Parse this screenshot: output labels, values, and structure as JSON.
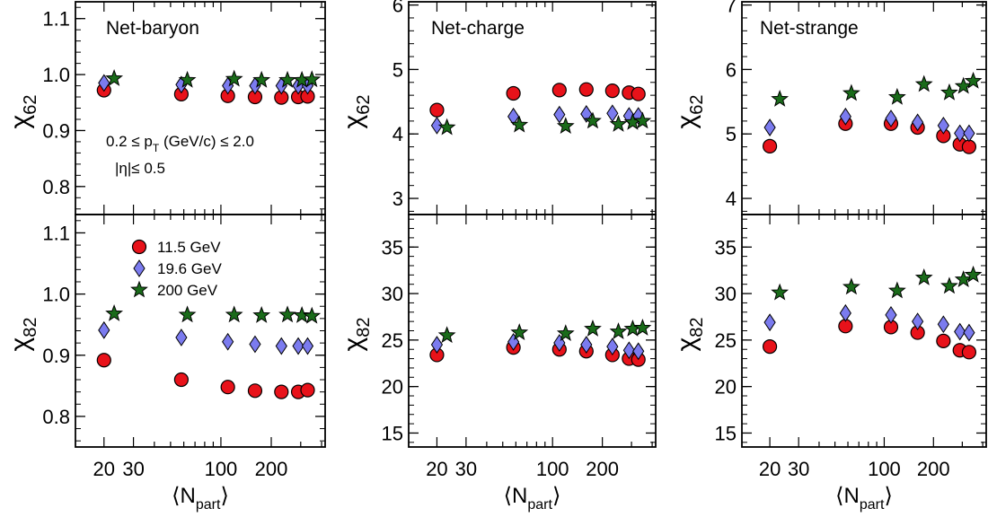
{
  "chart_data": [
    {
      "type": "scatter",
      "title": "Net-baryon",
      "xlabel": "⟨N_part⟩",
      "xscale": "log",
      "x_ticks": [
        "20",
        "30",
        "100",
        "200"
      ],
      "cut_labels": [
        "0.2 ≤ p_T (GeV/c) ≤ 2.0",
        "|η|≤ 0.5"
      ],
      "legend": {
        "placement": "top-left of lower panel",
        "entries": [
          {
            "label": "11.5 GeV",
            "marker": "circle",
            "color": "#e8121a"
          },
          {
            "label": "19.6 GeV",
            "marker": "diamond",
            "color": "#7b7bef"
          },
          {
            "label": "200 GeV",
            "marker": "star",
            "color": "#1a6b1a"
          }
        ]
      },
      "panels": [
        {
          "ylabel": "χ62",
          "ylim": [
            0.75,
            1.13
          ],
          "y_ticks": [
            "0.8",
            "0.9",
            "1.0",
            "1.1"
          ],
          "series": [
            {
              "name": "11.5 GeV",
              "points": [
                [
                  20,
                  0.972
                ],
                [
                  58,
                  0.965
                ],
                [
                  110,
                  0.962
                ],
                [
                  160,
                  0.96
                ],
                [
                  230,
                  0.959
                ],
                [
                  290,
                  0.96
                ],
                [
                  330,
                  0.961
                ]
              ]
            },
            {
              "name": "19.6 GeV",
              "points": [
                [
                  20,
                  0.985
                ],
                [
                  58,
                  0.982
                ],
                [
                  110,
                  0.98
                ],
                [
                  160,
                  0.98
                ],
                [
                  230,
                  0.98
                ],
                [
                  290,
                  0.98
                ],
                [
                  330,
                  0.98
                ]
              ]
            },
            {
              "name": "200 GeV",
              "points": [
                [
                  23,
                  0.993
                ],
                [
                  63,
                  0.99
                ],
                [
                  120,
                  0.992
                ],
                [
                  175,
                  0.99
                ],
                [
                  250,
                  0.99
                ],
                [
                  305,
                  0.99
                ],
                [
                  350,
                  0.991
                ]
              ]
            }
          ]
        },
        {
          "ylabel": "χ82",
          "ylim": [
            0.75,
            1.13
          ],
          "y_ticks": [
            "0.8",
            "0.9",
            "1.0",
            "1.1"
          ],
          "series": [
            {
              "name": "11.5 GeV",
              "points": [
                [
                  20,
                  0.892
                ],
                [
                  58,
                  0.86
                ],
                [
                  110,
                  0.848
                ],
                [
                  160,
                  0.842
                ],
                [
                  230,
                  0.84
                ],
                [
                  290,
                  0.84
                ],
                [
                  330,
                  0.843
                ]
              ]
            },
            {
              "name": "19.6 GeV",
              "points": [
                [
                  20,
                  0.941
                ],
                [
                  58,
                  0.929
                ],
                [
                  110,
                  0.922
                ],
                [
                  160,
                  0.918
                ],
                [
                  230,
                  0.915
                ],
                [
                  290,
                  0.915
                ],
                [
                  330,
                  0.915
                ]
              ]
            },
            {
              "name": "200 GeV",
              "points": [
                [
                  23,
                  0.968
                ],
                [
                  63,
                  0.966
                ],
                [
                  120,
                  0.966
                ],
                [
                  175,
                  0.965
                ],
                [
                  250,
                  0.966
                ],
                [
                  305,
                  0.965
                ],
                [
                  350,
                  0.964
                ]
              ]
            }
          ]
        }
      ]
    },
    {
      "type": "scatter",
      "title": "Net-charge",
      "xlabel": "⟨N_part⟩",
      "xscale": "log",
      "x_ticks": [
        "20",
        "30",
        "100",
        "200"
      ],
      "panels": [
        {
          "ylabel": "χ62",
          "ylim": [
            2.75,
            6.05
          ],
          "y_ticks": [
            "3",
            "4",
            "5",
            "6"
          ],
          "series": [
            {
              "name": "11.5 GeV",
              "points": [
                [
                  20,
                  4.37
                ],
                [
                  58,
                  4.63
                ],
                [
                  110,
                  4.68
                ],
                [
                  160,
                  4.69
                ],
                [
                  230,
                  4.67
                ],
                [
                  290,
                  4.64
                ],
                [
                  330,
                  4.62
                ]
              ]
            },
            {
              "name": "19.6 GeV",
              "points": [
                [
                  20,
                  4.13
                ],
                [
                  58,
                  4.27
                ],
                [
                  110,
                  4.3
                ],
                [
                  160,
                  4.31
                ],
                [
                  230,
                  4.32
                ],
                [
                  290,
                  4.28
                ],
                [
                  330,
                  4.28
                ]
              ]
            },
            {
              "name": "200 GeV",
              "points": [
                [
                  23,
                  4.1
                ],
                [
                  63,
                  4.14
                ],
                [
                  120,
                  4.12
                ],
                [
                  175,
                  4.2
                ],
                [
                  250,
                  4.15
                ],
                [
                  305,
                  4.18
                ],
                [
                  350,
                  4.2
                ]
              ]
            }
          ]
        },
        {
          "ylabel": "χ82",
          "ylim": [
            13.5,
            38.5
          ],
          "y_ticks": [
            "15",
            "20",
            "25",
            "30",
            "35"
          ],
          "series": [
            {
              "name": "11.5 GeV",
              "points": [
                [
                  20,
                  23.4
                ],
                [
                  58,
                  24.2
                ],
                [
                  110,
                  24.0
                ],
                [
                  160,
                  23.8
                ],
                [
                  230,
                  23.4
                ],
                [
                  290,
                  23.0
                ],
                [
                  330,
                  22.9
                ]
              ]
            },
            {
              "name": "19.6 GeV",
              "points": [
                [
                  20,
                  24.5
                ],
                [
                  58,
                  24.8
                ],
                [
                  110,
                  24.7
                ],
                [
                  160,
                  24.5
                ],
                [
                  230,
                  24.3
                ],
                [
                  290,
                  23.9
                ],
                [
                  330,
                  23.8
                ]
              ]
            },
            {
              "name": "200 GeV",
              "points": [
                [
                  23,
                  25.5
                ],
                [
                  63,
                  25.8
                ],
                [
                  120,
                  25.7
                ],
                [
                  175,
                  26.2
                ],
                [
                  250,
                  25.9
                ],
                [
                  305,
                  26.2
                ],
                [
                  350,
                  26.3
                ]
              ]
            }
          ]
        }
      ]
    },
    {
      "type": "scatter",
      "title": "Net-strange",
      "xlabel": "⟨N_part⟩",
      "xscale": "log",
      "x_ticks": [
        "20",
        "30",
        "100",
        "200"
      ],
      "panels": [
        {
          "ylabel": "χ62",
          "ylim": [
            3.75,
            7.05
          ],
          "y_ticks": [
            "4",
            "5",
            "6",
            "7"
          ],
          "series": [
            {
              "name": "11.5 GeV",
              "points": [
                [
                  20,
                  4.81
                ],
                [
                  58,
                  5.16
                ],
                [
                  110,
                  5.16
                ],
                [
                  160,
                  5.1
                ],
                [
                  230,
                  4.97
                ],
                [
                  290,
                  4.84
                ],
                [
                  330,
                  4.8
                ]
              ]
            },
            {
              "name": "19.6 GeV",
              "points": [
                [
                  20,
                  5.1
                ],
                [
                  58,
                  5.27
                ],
                [
                  110,
                  5.24
                ],
                [
                  160,
                  5.18
                ],
                [
                  230,
                  5.13
                ],
                [
                  290,
                  5.01
                ],
                [
                  330,
                  5.01
                ]
              ]
            },
            {
              "name": "200 GeV",
              "points": [
                [
                  23,
                  5.54
                ],
                [
                  63,
                  5.63
                ],
                [
                  120,
                  5.57
                ],
                [
                  175,
                  5.77
                ],
                [
                  250,
                  5.64
                ],
                [
                  305,
                  5.74
                ],
                [
                  350,
                  5.82
                ]
              ]
            }
          ]
        },
        {
          "ylabel": "χ82",
          "ylim": [
            13.5,
            38.5
          ],
          "y_ticks": [
            "15",
            "20",
            "25",
            "30",
            "35"
          ],
          "series": [
            {
              "name": "11.5 GeV",
              "points": [
                [
                  20,
                  24.3
                ],
                [
                  58,
                  26.5
                ],
                [
                  110,
                  26.4
                ],
                [
                  160,
                  25.8
                ],
                [
                  230,
                  24.9
                ],
                [
                  290,
                  23.9
                ],
                [
                  330,
                  23.7
                ]
              ]
            },
            {
              "name": "19.6 GeV",
              "points": [
                [
                  20,
                  26.9
                ],
                [
                  58,
                  27.9
                ],
                [
                  110,
                  27.7
                ],
                [
                  160,
                  27.0
                ],
                [
                  230,
                  26.7
                ],
                [
                  290,
                  25.9
                ],
                [
                  330,
                  25.8
                ]
              ]
            },
            {
              "name": "200 GeV",
              "points": [
                [
                  23,
                  30.1
                ],
                [
                  63,
                  30.7
                ],
                [
                  120,
                  30.3
                ],
                [
                  175,
                  31.7
                ],
                [
                  250,
                  30.8
                ],
                [
                  305,
                  31.5
                ],
                [
                  350,
                  32.0
                ]
              ]
            }
          ]
        }
      ]
    }
  ]
}
